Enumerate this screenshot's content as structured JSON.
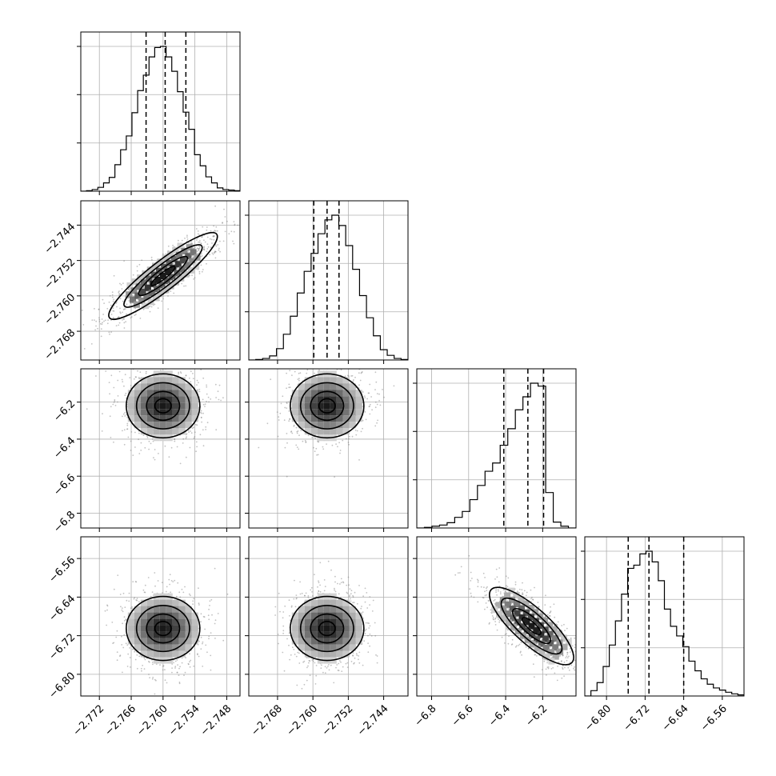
{
  "chart_data": {
    "type": "corner",
    "parameters": 4,
    "axes": [
      {
        "lim": [
          -2.7755,
          -2.7455
        ],
        "ticks": [
          -2.772,
          -2.766,
          -2.76,
          -2.754,
          -2.748
        ],
        "tick_labels": [
          "−2.772",
          "−2.766",
          "−2.760",
          "−2.754",
          "−2.748"
        ]
      },
      {
        "lim": [
          -2.7745,
          -2.7385
        ],
        "ticks": [
          -2.768,
          -2.76,
          -2.752,
          -2.744
        ],
        "tick_labels": [
          "−2.768",
          "−2.760",
          "−2.752",
          "−2.744"
        ]
      },
      {
        "lim": [
          -6.88,
          -6.02
        ],
        "ticks": [
          -6.8,
          -6.6,
          -6.4,
          -6.2
        ],
        "tick_labels": [
          "−6.8",
          "−6.6",
          "−6.4",
          "−6.2"
        ]
      },
      {
        "lim": [
          -6.845,
          -6.515
        ],
        "ticks": [
          -6.8,
          -6.72,
          -6.64,
          -6.56
        ],
        "tick_labels": [
          "−6.80",
          "−6.72",
          "−6.64",
          "−6.56"
        ]
      }
    ],
    "quantiles": [
      [
        -2.7632,
        -2.7596,
        -2.7557
      ],
      [
        -2.7598,
        -2.7568,
        -2.7541
      ],
      [
        -6.41,
        -6.28,
        -6.195
      ],
      [
        -6.755,
        -6.712,
        -6.64
      ]
    ],
    "histograms": [
      [
        0,
        1,
        3,
        7,
        15,
        25,
        48,
        75,
        100,
        142,
        182,
        210,
        243,
        260,
        262,
        243,
        217,
        180,
        143,
        112,
        66,
        46,
        26,
        15,
        6,
        3,
        2,
        1
      ],
      [
        0,
        1,
        3,
        8,
        22,
        50,
        85,
        130,
        172,
        207,
        245,
        272,
        281,
        261,
        222,
        176,
        125,
        82,
        47,
        20,
        9,
        3,
        1
      ],
      [
        0,
        1,
        3,
        5,
        9,
        18,
        28,
        48,
        72,
        96,
        110,
        140,
        168,
        200,
        222,
        245,
        240,
        60,
        10,
        3,
        0
      ],
      [
        0,
        10,
        25,
        55,
        95,
        140,
        190,
        238,
        244,
        265,
        270,
        250,
        215,
        162,
        130,
        112,
        92,
        65,
        47,
        32,
        22,
        15,
        11,
        7,
        4,
        2
      ]
    ],
    "density_centers": [
      {
        "i": 1,
        "j": 0,
        "x": -2.76,
        "y": -2.7555
      },
      {
        "i": 2,
        "j": 0,
        "x": -2.76,
        "y": -6.22
      },
      {
        "i": 2,
        "j": 1,
        "x": -2.7568,
        "y": -6.22
      },
      {
        "i": 3,
        "j": 0,
        "x": -2.76,
        "y": -6.705
      },
      {
        "i": 3,
        "j": 1,
        "x": -2.7568,
        "y": -6.705
      },
      {
        "i": 3,
        "j": 2,
        "x": -6.26,
        "y": -6.7
      }
    ],
    "grid": true,
    "xlabel": "",
    "ylabel": ""
  }
}
